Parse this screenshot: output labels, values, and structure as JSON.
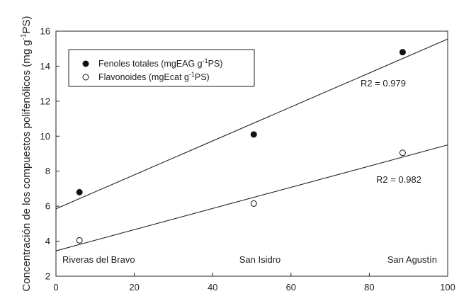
{
  "chart_data": {
    "type": "scatter",
    "xlim": [
      0,
      100
    ],
    "ylim": [
      2,
      16
    ],
    "x_ticks": [
      "0",
      "20",
      "40",
      "60",
      "80",
      "100"
    ],
    "y_ticks": [
      "2",
      "4",
      "6",
      "8",
      "10",
      "12",
      "14",
      "16"
    ],
    "ylabel": {
      "prefix": "Concentración de los compuestos polifenólicos (mg g",
      "sup": "-1",
      "suffix": "PS)"
    },
    "series": [
      {
        "name_prefix": "Fenoles totales (mgEAG g",
        "name_sup": "-1",
        "name_suffix": "PS)",
        "marker": "filled",
        "x": [
          6,
          50.5,
          88.5
        ],
        "y": [
          6.8,
          10.1,
          14.8
        ],
        "trend": {
          "y_at_0": 5.85,
          "y_at_100": 15.55
        },
        "r2_label": "R2 = 0.979"
      },
      {
        "name_prefix": "Flavonoides (mgEcat g",
        "name_sup": "-1",
        "name_suffix": "PS)",
        "marker": "open",
        "x": [
          6,
          50.5,
          88.5
        ],
        "y": [
          4.05,
          6.15,
          9.05
        ],
        "trend": {
          "y_at_0": 3.45,
          "y_at_100": 9.5
        },
        "r2_label": "R2 = 0.982"
      }
    ],
    "sites": [
      "Riveras del Bravo",
      "San Isidro",
      "San Agustín"
    ],
    "grid": false,
    "legend": "top-left"
  }
}
